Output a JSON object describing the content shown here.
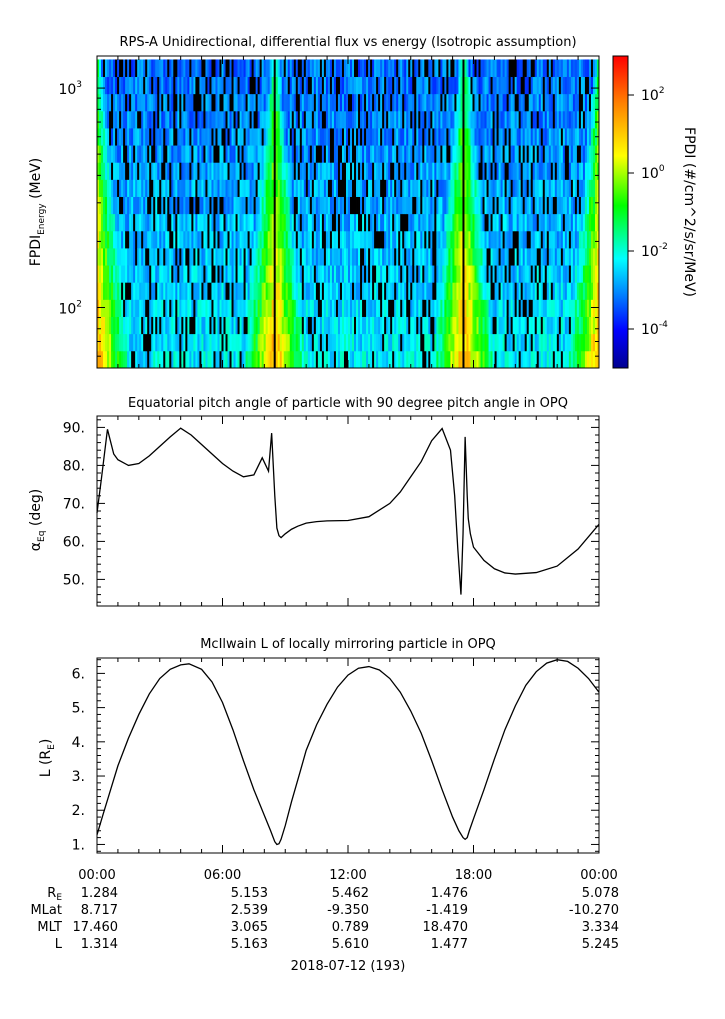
{
  "figure": {
    "date_label": "2018-07-12 (193)",
    "time_ticks": [
      "00:00",
      "06:00",
      "12:00",
      "18:00",
      "00:00"
    ],
    "ephemeris": {
      "row_labels": [
        {
          "main": "R",
          "sub": "E"
        },
        {
          "main": "MLat",
          "sub": ""
        },
        {
          "main": "MLT",
          "sub": ""
        },
        {
          "main": "L",
          "sub": ""
        }
      ],
      "values": [
        [
          "1.284",
          "5.153",
          "5.462",
          "1.476",
          "5.078"
        ],
        [
          "8.717",
          "2.539",
          "-9.350",
          "-1.419",
          "-10.270"
        ],
        [
          "17.460",
          "3.065",
          "0.789",
          "18.470",
          "3.334"
        ],
        [
          "1.314",
          "5.163",
          "5.610",
          "1.477",
          "5.245"
        ]
      ]
    }
  },
  "chart_data": [
    {
      "type": "heatmap",
      "title": "RPS-A Unidirectional, differential flux vs energy (Isotropic assumption)",
      "ylabel": {
        "pre": "FPDI",
        "sub": "Energy",
        "post": " (MeV)"
      },
      "ylim": [
        53,
        1400
      ],
      "yscale": "log",
      "yticks": [
        {
          "base": "10",
          "exp": "2",
          "value": 100
        },
        {
          "base": "10",
          "exp": "3",
          "value": 1000
        }
      ],
      "xlim_hours": [
        0,
        24
      ],
      "energy_channels": 18,
      "data_gaps_hours": [
        8.5,
        17.55
      ],
      "colorbar": {
        "label": "FPDI (#/cm^2/s/sr/MeV)",
        "scale": "log",
        "range_log10": [
          -5,
          3
        ],
        "ticks": [
          {
            "base": "10",
            "exp": "2",
            "log": 2
          },
          {
            "base": "10",
            "exp": "0",
            "log": 0
          },
          {
            "base": "10",
            "exp": "-2",
            "log": -2
          },
          {
            "base": "10",
            "exp": "-4",
            "log": -4
          }
        ]
      },
      "colors": {
        "low": "#0000aa",
        "mid_low": "#00ffff",
        "mid": "#00ff00",
        "mid_high": "#ffff00",
        "high": "#ff0000"
      }
    },
    {
      "type": "line",
      "title": "Equatorial pitch angle of particle with 90 degree pitch angle in OPQ",
      "ylabel": {
        "pre": "α",
        "sub": "Eq",
        "post": " (deg)"
      },
      "ylim": [
        43,
        93
      ],
      "yticks": [
        50,
        60,
        70,
        80,
        90
      ],
      "ytick_labels": [
        "50.",
        "60.",
        "70.",
        "80.",
        "90."
      ],
      "x": [
        0.0,
        0.2,
        0.5,
        0.8,
        1.0,
        1.5,
        2.0,
        2.5,
        3.0,
        3.5,
        4.0,
        4.5,
        5.0,
        5.5,
        6.0,
        6.5,
        7.0,
        7.5,
        7.9,
        8.2,
        8.35,
        8.5,
        8.6,
        8.7,
        8.8,
        9.0,
        9.3,
        9.6,
        10.0,
        10.5,
        11.0,
        12.0,
        13.0,
        14.0,
        14.5,
        15.0,
        15.5,
        16.0,
        16.5,
        16.9,
        17.1,
        17.25,
        17.4,
        17.5,
        17.6,
        17.7,
        17.75,
        17.85,
        18.0,
        18.5,
        19.0,
        19.5,
        20.0,
        21.0,
        22.0,
        23.0,
        24.0
      ],
      "y": [
        67.5,
        76,
        89.5,
        83,
        81.5,
        80,
        80.5,
        82.5,
        85,
        87.5,
        89.8,
        88,
        85.5,
        83,
        80.5,
        78.5,
        77,
        77.5,
        82,
        78.5,
        88.5,
        72,
        63.5,
        61.5,
        61,
        62,
        63.2,
        64,
        64.8,
        65.2,
        65.4,
        65.5,
        66.5,
        70,
        73,
        77,
        81,
        86.5,
        89.7,
        84,
        72,
        58,
        46,
        62,
        87.5,
        72,
        66,
        62,
        58.5,
        55,
        52.8,
        51.7,
        51.4,
        51.8,
        53.5,
        58,
        64.5
      ]
    },
    {
      "type": "line",
      "title": "McIlwain L of locally mirroring particle in OPQ",
      "ylabel": {
        "pre": "L (R",
        "sub": "E",
        "post": ")"
      },
      "ylim": [
        0.75,
        6.45
      ],
      "yticks": [
        1,
        2,
        3,
        4,
        5,
        6
      ],
      "ytick_labels": [
        "1.",
        "2.",
        "3.",
        "4.",
        "5.",
        "6."
      ],
      "x": [
        0.0,
        0.3,
        0.7,
        1.0,
        1.5,
        2.0,
        2.5,
        3.0,
        3.5,
        4.0,
        4.4,
        5.0,
        5.5,
        6.0,
        6.5,
        7.0,
        7.5,
        8.0,
        8.3,
        8.5,
        8.6,
        8.7,
        8.8,
        9.0,
        9.3,
        9.7,
        10.0,
        10.5,
        11.0,
        11.5,
        12.0,
        12.5,
        13.0,
        13.5,
        14.0,
        14.5,
        15.0,
        15.5,
        16.0,
        16.5,
        17.0,
        17.3,
        17.5,
        17.6,
        17.7,
        17.8,
        18.0,
        18.5,
        19.0,
        19.5,
        20.0,
        20.5,
        21.0,
        21.5,
        22.0,
        22.5,
        23.0,
        23.5,
        24.0
      ],
      "y": [
        1.28,
        1.9,
        2.7,
        3.3,
        4.1,
        4.8,
        5.4,
        5.85,
        6.12,
        6.25,
        6.28,
        6.12,
        5.75,
        5.15,
        4.35,
        3.45,
        2.6,
        1.85,
        1.4,
        1.08,
        1.0,
        1.02,
        1.15,
        1.55,
        2.25,
        3.1,
        3.75,
        4.5,
        5.1,
        5.6,
        5.95,
        6.15,
        6.2,
        6.1,
        5.85,
        5.45,
        4.9,
        4.25,
        3.45,
        2.6,
        1.8,
        1.4,
        1.2,
        1.15,
        1.2,
        1.4,
        1.75,
        2.6,
        3.5,
        4.35,
        5.05,
        5.65,
        6.05,
        6.3,
        6.4,
        6.35,
        6.15,
        5.85,
        5.45
      ]
    }
  ]
}
